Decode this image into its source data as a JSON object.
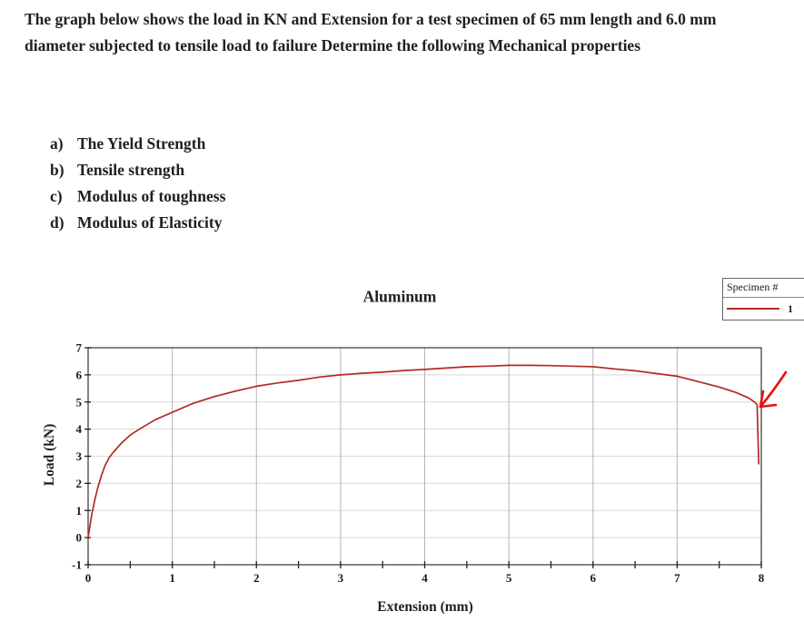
{
  "problem": {
    "statement": "The graph below shows the load in KN and Extension for a test specimen of 65 mm length and 6.0 mm diameter subjected to tensile load to failure Determine the following Mechanical properties",
    "questions": [
      {
        "label": "a)",
        "text": "The Yield Strength"
      },
      {
        "label": "b)",
        "text": "Tensile strength"
      },
      {
        "label": "c)",
        "text": "Modulus of toughness"
      },
      {
        "label": "d)",
        "text": "Modulus of Elasticity"
      }
    ]
  },
  "chart_data": {
    "type": "line",
    "title": "Aluminum",
    "xlabel": "Extension (mm)",
    "ylabel": "Load (kN)",
    "xlim": [
      0,
      8
    ],
    "ylim": [
      -1,
      7
    ],
    "x_ticks": [
      0,
      1,
      2,
      3,
      4,
      5,
      6,
      7,
      8
    ],
    "y_ticks": [
      -1,
      0,
      1,
      2,
      3,
      4,
      5,
      6,
      7
    ],
    "grid": true,
    "legend": {
      "title": "Specimen #",
      "entries": [
        {
          "label": "1",
          "color": "#b22a25"
        }
      ]
    },
    "series": [
      {
        "name": "1",
        "color": "#b22a25",
        "points": [
          [
            0,
            0
          ],
          [
            0.04,
            0.8
          ],
          [
            0.08,
            1.4
          ],
          [
            0.12,
            1.9
          ],
          [
            0.16,
            2.3
          ],
          [
            0.2,
            2.65
          ],
          [
            0.25,
            2.95
          ],
          [
            0.3,
            3.15
          ],
          [
            0.4,
            3.5
          ],
          [
            0.5,
            3.78
          ],
          [
            0.6,
            3.98
          ],
          [
            0.8,
            4.35
          ],
          [
            1.0,
            4.62
          ],
          [
            1.25,
            4.95
          ],
          [
            1.5,
            5.2
          ],
          [
            1.75,
            5.4
          ],
          [
            2.0,
            5.58
          ],
          [
            2.25,
            5.7
          ],
          [
            2.5,
            5.8
          ],
          [
            2.75,
            5.92
          ],
          [
            3.0,
            6.0
          ],
          [
            3.25,
            6.06
          ],
          [
            3.5,
            6.1
          ],
          [
            3.75,
            6.16
          ],
          [
            4.0,
            6.2
          ],
          [
            4.25,
            6.25
          ],
          [
            4.5,
            6.3
          ],
          [
            4.75,
            6.32
          ],
          [
            5.0,
            6.35
          ],
          [
            5.25,
            6.35
          ],
          [
            5.5,
            6.34
          ],
          [
            5.75,
            6.32
          ],
          [
            6.0,
            6.3
          ],
          [
            6.25,
            6.22
          ],
          [
            6.5,
            6.15
          ],
          [
            6.75,
            6.05
          ],
          [
            7.0,
            5.95
          ],
          [
            7.25,
            5.75
          ],
          [
            7.5,
            5.55
          ],
          [
            7.7,
            5.35
          ],
          [
            7.85,
            5.15
          ],
          [
            7.92,
            5.0
          ],
          [
            7.95,
            4.9
          ],
          [
            7.97,
            2.7
          ]
        ]
      }
    ],
    "annotations": [
      {
        "type": "arrow",
        "desc": "hand-drawn red arrow pointing at fracture point",
        "color": "#e8100c"
      }
    ]
  }
}
